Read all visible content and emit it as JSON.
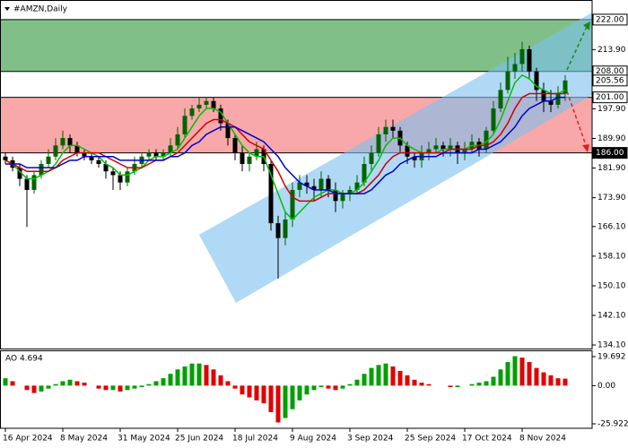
{
  "chart_data": [
    {
      "type": "candlestick",
      "title": "#AMZN,Daily",
      "categories": [
        "16 Apr 2024",
        null,
        null,
        null,
        null,
        null,
        null,
        null,
        "8 May 2024",
        null,
        null,
        null,
        null,
        null,
        null,
        null,
        "31 May 2024",
        null,
        null,
        null,
        null,
        null,
        null,
        null,
        "25 Jun 2024",
        null,
        null,
        null,
        null,
        null,
        null,
        null,
        "18 Jul 2024",
        null,
        null,
        null,
        null,
        null,
        null,
        null,
        "9 Aug 2024",
        null,
        null,
        null,
        null,
        null,
        null,
        null,
        "3 Sep 2024",
        null,
        null,
        null,
        null,
        null,
        null,
        null,
        "25 Sep 2024",
        null,
        null,
        null,
        null,
        null,
        null,
        null,
        "17 Oct 2024",
        null,
        null,
        null,
        null,
        null,
        null,
        null,
        "8 Nov 2024",
        null,
        null,
        null,
        null,
        null,
        null
      ],
      "open": [
        185,
        184,
        182,
        179,
        176,
        180,
        183,
        185,
        188,
        190,
        188,
        186,
        185,
        184,
        183,
        181,
        180,
        178,
        181,
        183,
        185,
        186,
        185,
        186,
        188,
        191,
        196,
        198,
        199,
        200,
        198,
        194,
        190,
        186,
        183,
        185,
        187,
        183,
        167,
        163,
        168,
        176,
        178,
        177,
        176,
        179,
        176,
        173,
        175,
        176,
        178,
        183,
        186,
        191,
        193,
        192,
        188,
        185,
        184,
        186,
        187,
        188,
        187,
        188,
        186,
        187,
        189,
        187,
        192,
        198,
        203,
        208,
        210,
        214,
        208,
        203,
        200,
        199,
        202
      ],
      "high": [
        186,
        185,
        183,
        180,
        181,
        184,
        187,
        190,
        192,
        191,
        189,
        187,
        186,
        185,
        184,
        182,
        181,
        182,
        185,
        186,
        187,
        187,
        187,
        190,
        193,
        198,
        199,
        201,
        201,
        201,
        199,
        195,
        191,
        188,
        186,
        189,
        188,
        184,
        169,
        170,
        178,
        180,
        180,
        179,
        181,
        180,
        178,
        176,
        177,
        180,
        185,
        188,
        193,
        195,
        195,
        193,
        189,
        186,
        188,
        189,
        190,
        189,
        190,
        189,
        189,
        191,
        190,
        193,
        200,
        205,
        212,
        213,
        216,
        215,
        209,
        205,
        203,
        204,
        207
      ],
      "low": [
        183,
        181,
        177,
        166,
        175,
        179,
        182,
        184,
        187,
        186,
        185,
        184,
        183,
        182,
        179,
        176,
        176,
        177,
        180,
        182,
        184,
        184,
        184,
        185,
        187,
        190,
        195,
        197,
        198,
        197,
        192,
        188,
        184,
        181,
        181,
        184,
        181,
        165,
        152,
        161,
        166,
        174,
        175,
        173,
        174,
        174,
        170,
        171,
        173,
        175,
        177,
        181,
        185,
        189,
        190,
        186,
        183,
        182,
        182,
        184,
        186,
        185,
        185,
        183,
        184,
        186,
        185,
        186,
        191,
        197,
        202,
        206,
        208,
        206,
        200,
        197,
        197,
        198,
        200
      ],
      "close": [
        184,
        182,
        179,
        176,
        180,
        183,
        185,
        188,
        190,
        188,
        186,
        185,
        184,
        183,
        181,
        180,
        178,
        181,
        183,
        185,
        186,
        185,
        186,
        188,
        191,
        196,
        198,
        199,
        200,
        198,
        194,
        190,
        186,
        183,
        185,
        187,
        183,
        167,
        163,
        168,
        176,
        178,
        177,
        176,
        179,
        176,
        173,
        175,
        176,
        178,
        183,
        186,
        191,
        193,
        192,
        188,
        185,
        184,
        186,
        187,
        188,
        187,
        188,
        186,
        187,
        189,
        187,
        192,
        198,
        203,
        208,
        210,
        214,
        208,
        203,
        200,
        199,
        202,
        205.56
      ],
      "up_color": "#006400",
      "down_color": "#000000",
      "lines": [
        {
          "color": "#00c000",
          "values": [
            184,
            183,
            181,
            179,
            179,
            180,
            181,
            183,
            186,
            188,
            188,
            187,
            186,
            185,
            183,
            182,
            180,
            180,
            181,
            182,
            184,
            185,
            185,
            186,
            187,
            190,
            193,
            196,
            198,
            198,
            197,
            194,
            191,
            188,
            186,
            185,
            185,
            180,
            175,
            170,
            168,
            170,
            172,
            174,
            175,
            176,
            176,
            175,
            175,
            176,
            178,
            181,
            184,
            188,
            190,
            190,
            188,
            187,
            186,
            186,
            186,
            187,
            187,
            187,
            187,
            188,
            188,
            189,
            191,
            195,
            200,
            205,
            207,
            206,
            204,
            203,
            202,
            202,
            203
          ]
        },
        {
          "color": "#d00000",
          "values": [
            184,
            183,
            182,
            181,
            181,
            181,
            181,
            182,
            184,
            185,
            186,
            186,
            186,
            186,
            185,
            184,
            183,
            182,
            182,
            182,
            183,
            184,
            184,
            185,
            186,
            188,
            190,
            192,
            194,
            195,
            195,
            194,
            193,
            191,
            189,
            188,
            187,
            184,
            181,
            177,
            174,
            173,
            173,
            173,
            174,
            175,
            175,
            175,
            175,
            175,
            176,
            178,
            180,
            183,
            185,
            186,
            186,
            186,
            186,
            186,
            186,
            186,
            187,
            187,
            187,
            187,
            188,
            188,
            189,
            191,
            194,
            198,
            201,
            202,
            202,
            202,
            202,
            202,
            202
          ]
        },
        {
          "color": "#0000d0",
          "values": [
            183,
            183,
            183,
            182,
            182,
            182,
            182,
            182,
            183,
            184,
            184,
            185,
            185,
            185,
            185,
            185,
            184,
            184,
            184,
            184,
            184,
            184,
            184,
            185,
            185,
            186,
            188,
            189,
            191,
            192,
            193,
            193,
            193,
            192,
            191,
            190,
            189,
            187,
            185,
            182,
            180,
            178,
            177,
            176,
            176,
            176,
            175,
            175,
            175,
            175,
            175,
            176,
            178,
            180,
            181,
            183,
            184,
            185,
            185,
            185,
            185,
            186,
            186,
            186,
            186,
            186,
            187,
            187,
            188,
            189,
            191,
            193,
            196,
            198,
            199,
            200,
            200,
            201,
            201
          ]
        }
      ],
      "ylim": [
        132.9,
        227.3
      ],
      "yticks": [
        {
          "value": 213.9,
          "label": "213.90"
        },
        {
          "value": 197.9,
          "label": "197.90"
        },
        {
          "value": 189.9,
          "label": "189.90"
        },
        {
          "value": 181.9,
          "label": "181.90"
        },
        {
          "value": 173.9,
          "label": "173.90"
        },
        {
          "value": 166.1,
          "label": "166.10"
        },
        {
          "value": 158.1,
          "label": "158.10"
        },
        {
          "value": 150.1,
          "label": "150.10"
        },
        {
          "value": 142.1,
          "label": "142.10"
        },
        {
          "value": 134.1,
          "label": "134.10"
        }
      ],
      "levels": [
        {
          "value": 222,
          "label": "222.00"
        },
        {
          "value": 208,
          "label": "208.00"
        },
        {
          "value": 201,
          "label": "201.00"
        },
        {
          "value": 186,
          "label": "186.00"
        }
      ],
      "last_price": {
        "value": 205.56,
        "label": "205.56"
      },
      "upper_zone_color": "#80c088",
      "lower_zone_color": "#f8a8a8"
    },
    {
      "type": "bar",
      "title": "AO 4.694",
      "values": [
        5,
        3,
        0,
        -3,
        -5,
        -4,
        -2,
        1,
        3,
        4,
        3,
        2,
        0,
        -2,
        -3,
        -3,
        -4,
        -3,
        -2,
        -1,
        1,
        3,
        5,
        8,
        11,
        13,
        15,
        15,
        14,
        11,
        7,
        3,
        -2,
        -6,
        -8,
        -10,
        -12,
        -18,
        -25,
        -22,
        -16,
        -10,
        -6,
        -3,
        -1,
        -2,
        -3,
        -2,
        1,
        4,
        8,
        12,
        14,
        15,
        13,
        10,
        7,
        4,
        2,
        1,
        0,
        0,
        -1,
        -1,
        0,
        1,
        2,
        3,
        6,
        11,
        16,
        20,
        19,
        16,
        12,
        9,
        7,
        5,
        4.694
      ],
      "up_color": "#00a000",
      "down_color": "#e00000",
      "ylim": [
        -28.96,
        23.34
      ],
      "yticks": [
        19.692,
        {
          "value": 0,
          "label": "0.00"
        },
        -25.922
      ]
    }
  ]
}
